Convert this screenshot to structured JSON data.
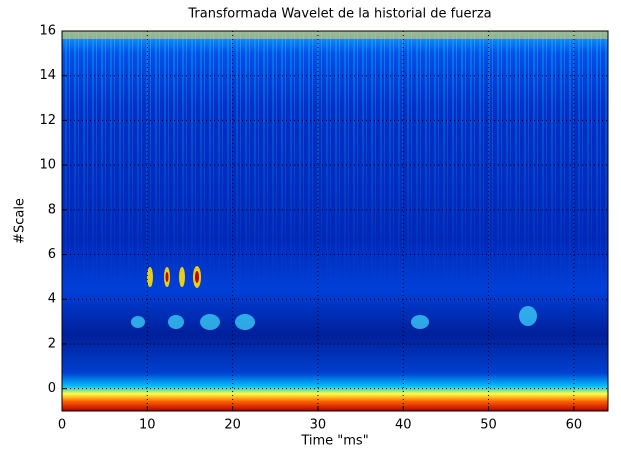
{
  "chart_data": {
    "type": "heatmap",
    "title": "Transformada Wavelet de la historial de fuerza",
    "xlabel": "Time  \"ms\"",
    "ylabel": "#Scale",
    "xlim": [
      0,
      64
    ],
    "xticks": [
      0,
      10,
      20,
      30,
      40,
      50,
      60
    ],
    "ylim": [
      -1,
      16
    ],
    "yticks": [
      0,
      2,
      4,
      6,
      8,
      10,
      12,
      14,
      16
    ],
    "grid": true
  }
}
